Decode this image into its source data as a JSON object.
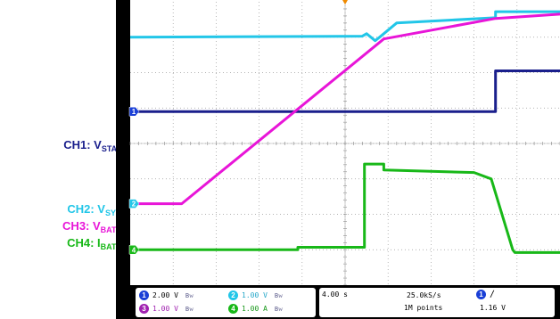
{
  "labels": [
    {
      "id": "ch1",
      "main": "CH1: V",
      "sub": "STAT",
      "color": "#1a1f8c"
    },
    {
      "id": "ch2",
      "main": "CH2: V",
      "sub": "SYS",
      "color": "#22c6e8"
    },
    {
      "id": "ch3",
      "main": "CH3: V",
      "sub": "BATT",
      "color": "#e815d8"
    },
    {
      "id": "ch4",
      "main": "CH4: I",
      "sub": "BATT",
      "color": "#18b818"
    }
  ],
  "status": {
    "channels": [
      {
        "num": "1",
        "scale": "2.00 V",
        "bw": "Bᴡ",
        "color": "#1a3fd6"
      },
      {
        "num": "2",
        "scale": "1.00 V",
        "bw": "Bᴡ",
        "color": "#22c6e8"
      },
      {
        "num": "3",
        "scale": "1.00 V",
        "bw": "Bᴡ",
        "color": "#a021b0"
      },
      {
        "num": "4",
        "scale": "1.00 A",
        "bw": "Bᴡ",
        "color": "#18b818"
      }
    ],
    "timebase": "4.00 s",
    "sample_rate": "25.0kS/s",
    "record_length": "1M points",
    "trigger_channel": "1",
    "trigger_edge": "∕",
    "trigger_level": "1.16 V"
  },
  "chart_data": {
    "type": "line",
    "x_divisions": 10,
    "y_divisions": 8,
    "grid": true,
    "xlabel": "",
    "ylabel": "",
    "ylim": [
      0,
      8
    ],
    "series": [
      {
        "name": "CH1: VSTAT",
        "color": "#1a1f8c",
        "x": [
          0,
          8.5,
          8.5,
          10
        ],
        "y": [
          4.9,
          4.9,
          6.05,
          6.05
        ]
      },
      {
        "name": "CH2: VSYS",
        "color": "#22c6e8",
        "x": [
          0,
          5.4,
          5.5,
          5.7,
          5.8,
          6.2,
          8.5,
          8.5,
          10
        ],
        "y": [
          7.0,
          7.03,
          7.1,
          6.9,
          7.0,
          7.4,
          7.55,
          7.72,
          7.72
        ]
      },
      {
        "name": "CH3: VBATT",
        "color": "#e815d8",
        "x": [
          0,
          1.2,
          5.9,
          8.5,
          10
        ],
        "y": [
          2.3,
          2.3,
          6.95,
          7.53,
          7.65
        ]
      },
      {
        "name": "CH4: IBATT",
        "color": "#18b818",
        "x": [
          0,
          3.9,
          3.9,
          5.4,
          5.45,
          5.45,
          5.9,
          5.9,
          8.0,
          8.4,
          8.9,
          8.95,
          10
        ],
        "y": [
          1.0,
          1.0,
          1.07,
          1.07,
          1.07,
          3.42,
          3.42,
          3.25,
          3.18,
          3.0,
          1.0,
          0.92,
          0.92
        ]
      }
    ],
    "ground_markers": [
      {
        "channel": "1",
        "level": 4.9,
        "color": "#1a3fd6"
      },
      {
        "channel": "2",
        "level": 2.3,
        "color": "#22c6e8"
      },
      {
        "channel": "4",
        "level": 1.0,
        "color": "#18b818"
      }
    ],
    "trigger_position_div": 5.0
  }
}
